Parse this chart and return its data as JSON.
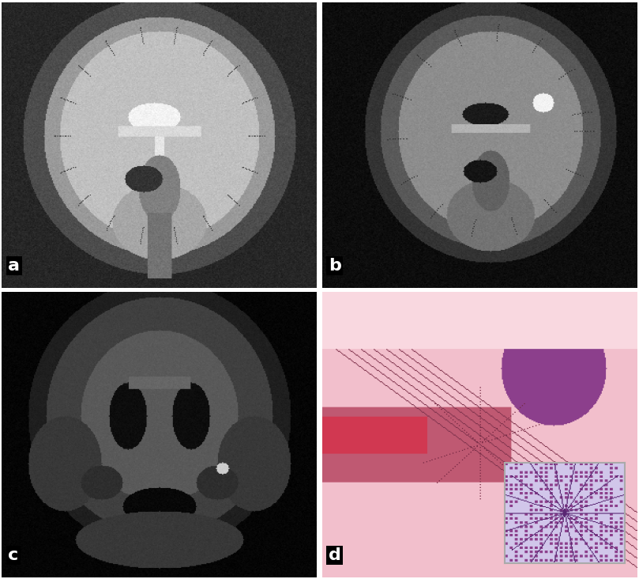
{
  "figure_width": 8.09,
  "figure_height": 7.32,
  "dpi": 100,
  "background_color": "#ffffff",
  "labels": [
    "a",
    "b",
    "c",
    "d"
  ],
  "label_color": "#ffffff",
  "label_bg_color": "#000000",
  "label_fontsize": 16,
  "label_fontweight": "bold"
}
